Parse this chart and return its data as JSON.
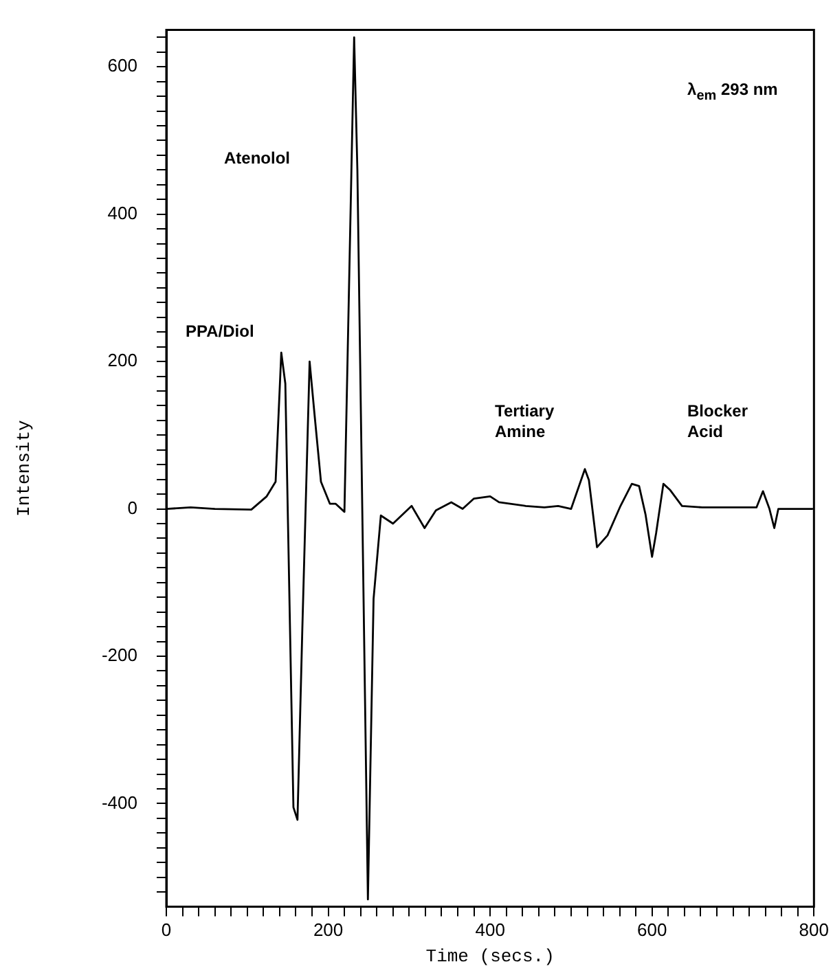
{
  "chart_data": {
    "type": "line",
    "xlabel": "Time (secs.)",
    "ylabel": "Intensity",
    "annotations": [
      "Atenolol",
      "PPA/Diol",
      "Tertiary Amine",
      "Blocker Acid",
      "λ$_{em}$ 293 nm"
    ],
    "xlim": [
      0,
      800
    ],
    "ylim": [
      -540,
      650
    ],
    "xticks": [
      0,
      {
        "value": 20,
        "label": null
      },
      {
        "value": 40,
        "label": null
      },
      {
        "value": 60,
        "label": null
      },
      {
        "value": 80,
        "label": null
      },
      {
        "value": 100,
        "label": null
      },
      {
        "value": 120,
        "label": null
      },
      {
        "value": 140,
        "label": null
      },
      {
        "value": 160,
        "label": null
      },
      {
        "value": 180,
        "label": null
      },
      200,
      {
        "value": 220,
        "label": null
      },
      {
        "value": 240,
        "label": null
      },
      {
        "value": 260,
        "label": null
      },
      {
        "value": 280,
        "label": null
      },
      {
        "value": 300,
        "label": null
      },
      {
        "value": 320,
        "label": null
      },
      {
        "value": 340,
        "label": null
      },
      {
        "value": 360,
        "label": null
      },
      {
        "value": 380,
        "label": null
      },
      400,
      {
        "value": 420,
        "label": null
      },
      {
        "value": 440,
        "label": null
      },
      {
        "value": 460,
        "label": null
      },
      {
        "value": 480,
        "label": null
      },
      {
        "value": 500,
        "label": null
      },
      {
        "value": 520,
        "label": null
      },
      {
        "value": 540,
        "label": null
      },
      {
        "value": 560,
        "label": null
      },
      {
        "value": 580,
        "label": null
      },
      600,
      {
        "value": 620,
        "label": null
      },
      {
        "value": 640,
        "label": null
      },
      {
        "value": 660,
        "label": null
      },
      {
        "value": 680,
        "label": null
      },
      {
        "value": 700,
        "label": null
      },
      {
        "value": 720,
        "label": null
      },
      {
        "value": 740,
        "label": null
      },
      {
        "value": 760,
        "label": null
      },
      {
        "value": 780,
        "label": null
      },
      800
    ],
    "yticks": [
      {
        "value": -520,
        "label": null
      },
      {
        "value": -500,
        "label": null
      },
      {
        "value": -480,
        "label": null
      },
      {
        "value": -460,
        "label": null
      },
      {
        "value": -440,
        "label": null
      },
      {
        "value": -420,
        "label": null
      },
      -400,
      {
        "value": -380,
        "label": null
      },
      {
        "value": -360,
        "label": null
      },
      {
        "value": -340,
        "label": null
      },
      {
        "value": -320,
        "label": null
      },
      {
        "value": -300,
        "label": null
      },
      {
        "value": -280,
        "label": null
      },
      {
        "value": -260,
        "label": null
      },
      {
        "value": -240,
        "label": null
      },
      {
        "value": -220,
        "label": null
      },
      -200,
      {
        "value": -180,
        "label": null
      },
      {
        "value": -160,
        "label": null
      },
      {
        "value": -140,
        "label": null
      },
      {
        "value": -120,
        "label": null
      },
      {
        "value": -100,
        "label": null
      },
      {
        "value": -80,
        "label": null
      },
      {
        "value": -60,
        "label": null
      },
      {
        "value": -40,
        "label": null
      },
      {
        "value": -20,
        "label": null
      },
      0,
      {
        "value": 20,
        "label": null
      },
      {
        "value": 40,
        "label": null
      },
      {
        "value": 60,
        "label": null
      },
      {
        "value": 80,
        "label": null
      },
      {
        "value": 100,
        "label": null
      },
      {
        "value": 120,
        "label": null
      },
      {
        "value": 140,
        "label": null
      },
      {
        "value": 160,
        "label": null
      },
      {
        "value": 180,
        "label": null
      },
      200,
      {
        "value": 220,
        "label": null
      },
      {
        "value": 240,
        "label": null
      },
      {
        "value": 260,
        "label": null
      },
      {
        "value": 280,
        "label": null
      },
      {
        "value": 300,
        "label": null
      },
      {
        "value": 320,
        "label": null
      },
      {
        "value": 340,
        "label": null
      },
      {
        "value": 360,
        "label": null
      },
      {
        "value": 380,
        "label": null
      },
      400,
      {
        "value": 420,
        "label": null
      },
      {
        "value": 440,
        "label": null
      },
      {
        "value": 460,
        "label": null
      },
      {
        "value": 480,
        "label": null
      },
      {
        "value": 500,
        "label": null
      },
      {
        "value": 520,
        "label": null
      },
      {
        "value": 540,
        "label": null
      },
      {
        "value": 560,
        "label": null
      },
      {
        "value": 580,
        "label": null
      },
      600,
      {
        "value": 620,
        "label": null
      },
      {
        "value": 640,
        "label": null
      }
    ],
    "grid": false,
    "legend": false,
    "marker": "none",
    "line_style": "solid",
    "series": [
      {
        "color": "#000000",
        "x": [
          0,
          30,
          60,
          105,
          124,
          135,
          142,
          147,
          157,
          162,
          168,
          177,
          183,
          191,
          202,
          209,
          220,
          232,
          236,
          249,
          256,
          265,
          280,
          303,
          319,
          333,
          352,
          366,
          380,
          400,
          411,
          444,
          467,
          484,
          500,
          517,
          522,
          532,
          545,
          561,
          575,
          584,
          592,
          600,
          605,
          614,
          622,
          637,
          662,
          729,
          737,
          745,
          751,
          756,
          798
        ],
        "values": [
          0,
          2,
          0,
          -1,
          17,
          37,
          212,
          170,
          -405,
          -422,
          -163,
          200,
          129,
          37,
          7,
          7,
          -4,
          640,
          460,
          -530,
          -122,
          -9,
          -20,
          4,
          -26,
          -2,
          9,
          0,
          14,
          17,
          9,
          4,
          2,
          4,
          0,
          54,
          39,
          -52,
          -36,
          4,
          34,
          31,
          -8,
          -65,
          -33,
          34,
          26,
          4,
          2,
          2,
          24,
          0,
          -26,
          0,
          0
        ]
      }
    ]
  }
}
